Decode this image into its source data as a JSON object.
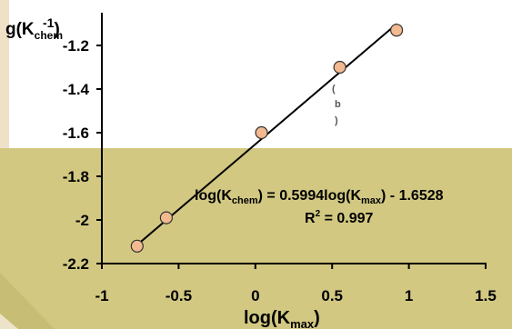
{
  "chart_data": {
    "type": "scatter",
    "title": "",
    "xlabel": "log(K_max)",
    "ylabel": "log(K_chem)",
    "xlim": [
      -1,
      1.5
    ],
    "ylim": [
      -2.2,
      -1.1
    ],
    "xticks": [
      -1,
      -0.5,
      0,
      0.5,
      1,
      1.5
    ],
    "yticks": [
      -2.2,
      -2,
      -1.8,
      -1.6,
      -1.4,
      -1.2
    ],
    "xtick_labels": [
      "-1",
      "-0.5",
      "0",
      "0.5",
      "1",
      "1.5"
    ],
    "ytick_labels": [
      "-2.2",
      "-2",
      "-1.8",
      "-1.6",
      "-1.4",
      "-1.2"
    ],
    "grid": false,
    "legend": "none",
    "series": [
      {
        "points": [
          {
            "x": -0.77,
            "y": -2.12
          },
          {
            "x": -0.58,
            "y": -1.99
          },
          {
            "x": 0.04,
            "y": -1.6
          },
          {
            "x": 0.55,
            "y": -1.3
          },
          {
            "x": 0.92,
            "y": -1.13
          }
        ],
        "marker_fill": "#f3b98f",
        "marker_stroke": "#333333"
      }
    ],
    "fit": {
      "slope": 0.5994,
      "intercept": -1.6528,
      "x_range": [
        -0.77,
        0.92
      ],
      "equation_prefix": "log(K",
      "equation_sub1": "chem",
      "equation_mid": ") = 0.5994log(K",
      "equation_sub2": "max",
      "equation_suffix": ") - 1.6528",
      "r2_label": "R",
      "r2_sup": "2",
      "r2_value": " = 0.997"
    },
    "annotation": [
      "(",
      "b",
      ")"
    ],
    "ylabel_parts": {
      "prefix": "g(K",
      "sub": "chem",
      "sup": "-1",
      "suffix": ")"
    },
    "xlabel_parts": {
      "prefix": "log(K",
      "sub": "max",
      "suffix": ")"
    }
  }
}
